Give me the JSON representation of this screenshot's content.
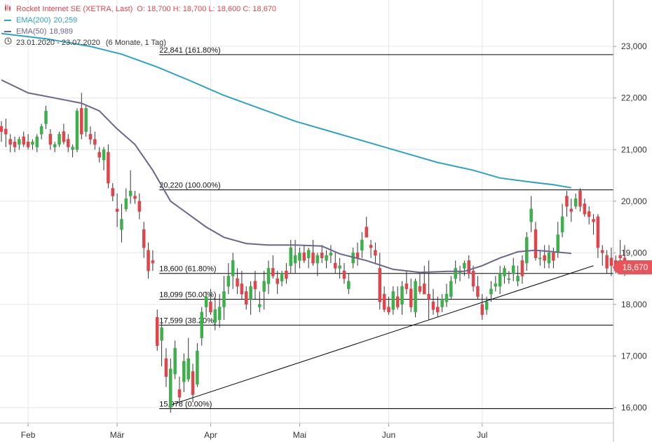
{
  "legend": {
    "title": "Rocket Internet SE (XETRA, Last)",
    "ohlc": "O: 18,700   H: 18,700   L: 18,600   C: 18,670",
    "ema200_label": "EMA(200)",
    "ema200_value": "20,259",
    "ema50_label": "EMA(50)",
    "ema50_value": "18,989",
    "range_label": "23.01.2020 - 23.07.2020",
    "period_label": "(6 Monate, 1 Tag)"
  },
  "last_price_label": "18,670",
  "colors": {
    "up": "#3cb04a",
    "down": "#e0454b",
    "ema200": "#2aa3c4",
    "ema50": "#6e6589",
    "grid": "#e6e6e6",
    "fib_line": "#000000",
    "price_tag": "#e8545a"
  },
  "chart_data": {
    "type": "candlestick",
    "title": "Rocket Internet SE (XETRA, Last)",
    "y_axis": {
      "min": 15700,
      "max": 23900,
      "ticks": [
        16000,
        17000,
        18000,
        19000,
        20000,
        21000,
        22000,
        23000
      ],
      "tick_labels": [
        "16,000",
        "17,000",
        "18,000",
        "19,000",
        "20,000",
        "21,000",
        "22,000",
        "23,000"
      ]
    },
    "x_axis": {
      "month_labels": [
        {
          "label": "Feb",
          "index": 6
        },
        {
          "label": "Mär",
          "index": 26
        },
        {
          "label": "Apr",
          "index": 47
        },
        {
          "label": "Mai",
          "index": 67
        },
        {
          "label": "Jun",
          "index": 87
        },
        {
          "label": "Jul",
          "index": 108
        }
      ]
    },
    "candles": [
      {
        "o": 21450,
        "h": 21550,
        "l": 21150,
        "c": 21350
      },
      {
        "o": 21400,
        "h": 21600,
        "l": 21050,
        "c": 21300
      },
      {
        "o": 21200,
        "h": 21300,
        "l": 20950,
        "c": 21100
      },
      {
        "o": 21150,
        "h": 21250,
        "l": 20950,
        "c": 21050
      },
      {
        "o": 21100,
        "h": 21250,
        "l": 21000,
        "c": 21200
      },
      {
        "o": 21250,
        "h": 21350,
        "l": 21050,
        "c": 21100
      },
      {
        "o": 21150,
        "h": 21300,
        "l": 21000,
        "c": 21050
      },
      {
        "o": 21100,
        "h": 21200,
        "l": 21000,
        "c": 21150
      },
      {
        "o": 21050,
        "h": 21300,
        "l": 20950,
        "c": 21250
      },
      {
        "o": 21300,
        "h": 21500,
        "l": 21200,
        "c": 21450
      },
      {
        "o": 21500,
        "h": 21850,
        "l": 21400,
        "c": 21750
      },
      {
        "o": 21300,
        "h": 21400,
        "l": 21000,
        "c": 21100
      },
      {
        "o": 21050,
        "h": 21150,
        "l": 20950,
        "c": 21100
      },
      {
        "o": 21100,
        "h": 21350,
        "l": 21050,
        "c": 21300
      },
      {
        "o": 21350,
        "h": 21500,
        "l": 21100,
        "c": 21150
      },
      {
        "o": 21200,
        "h": 21300,
        "l": 20950,
        "c": 21050
      },
      {
        "o": 21000,
        "h": 21100,
        "l": 20850,
        "c": 21050
      },
      {
        "o": 21000,
        "h": 21800,
        "l": 20950,
        "c": 21750
      },
      {
        "o": 21800,
        "h": 22100,
        "l": 21200,
        "c": 21300
      },
      {
        "o": 21350,
        "h": 21850,
        "l": 21250,
        "c": 21800
      },
      {
        "o": 21300,
        "h": 21450,
        "l": 21100,
        "c": 21200
      },
      {
        "o": 21200,
        "h": 21350,
        "l": 21000,
        "c": 21100
      },
      {
        "o": 20950,
        "h": 21050,
        "l": 20750,
        "c": 20850
      },
      {
        "o": 20800,
        "h": 21050,
        "l": 20600,
        "c": 21000
      },
      {
        "o": 20950,
        "h": 21100,
        "l": 20250,
        "c": 20350
      },
      {
        "o": 20250,
        "h": 20350,
        "l": 20000,
        "c": 20100
      },
      {
        "o": 19850,
        "h": 20150,
        "l": 19500,
        "c": 19800
      },
      {
        "o": 19450,
        "h": 19950,
        "l": 19200,
        "c": 19650
      },
      {
        "o": 19850,
        "h": 20250,
        "l": 19800,
        "c": 20050
      },
      {
        "o": 20100,
        "h": 20600,
        "l": 19950,
        "c": 20200
      },
      {
        "o": 20100,
        "h": 20200,
        "l": 19950,
        "c": 20050
      },
      {
        "o": 20000,
        "h": 20150,
        "l": 19650,
        "c": 19800
      },
      {
        "o": 19450,
        "h": 19600,
        "l": 18900,
        "c": 19100
      },
      {
        "o": 19050,
        "h": 19200,
        "l": 18500,
        "c": 18650
      },
      {
        "o": 18850,
        "h": 19050,
        "l": 18650,
        "c": 18800
      },
      {
        "o": 17750,
        "h": 17900,
        "l": 17100,
        "c": 17200
      },
      {
        "o": 17300,
        "h": 17650,
        "l": 16800,
        "c": 17550
      },
      {
        "o": 16950,
        "h": 17150,
        "l": 16400,
        "c": 16600
      },
      {
        "o": 16000,
        "h": 16950,
        "l": 15900,
        "c": 16750
      },
      {
        "o": 16650,
        "h": 17300,
        "l": 16550,
        "c": 17150
      },
      {
        "o": 16350,
        "h": 16600,
        "l": 16050,
        "c": 16200
      },
      {
        "o": 16500,
        "h": 17050,
        "l": 16300,
        "c": 16900
      },
      {
        "o": 16550,
        "h": 17350,
        "l": 16500,
        "c": 16950
      },
      {
        "o": 16700,
        "h": 16850,
        "l": 16100,
        "c": 16250
      },
      {
        "o": 16450,
        "h": 17250,
        "l": 16400,
        "c": 17100
      },
      {
        "o": 17350,
        "h": 17950,
        "l": 17200,
        "c": 17850
      },
      {
        "o": 17950,
        "h": 18250,
        "l": 17750,
        "c": 18150
      },
      {
        "o": 18050,
        "h": 18300,
        "l": 17800,
        "c": 17850
      },
      {
        "o": 17650,
        "h": 18150,
        "l": 17500,
        "c": 17900
      },
      {
        "o": 17700,
        "h": 18200,
        "l": 17550,
        "c": 17950
      },
      {
        "o": 17950,
        "h": 18550,
        "l": 17700,
        "c": 18250
      },
      {
        "o": 18350,
        "h": 18800,
        "l": 18200,
        "c": 18550
      },
      {
        "o": 18550,
        "h": 19000,
        "l": 18300,
        "c": 18850
      },
      {
        "o": 18500,
        "h": 18700,
        "l": 18200,
        "c": 18350
      },
      {
        "o": 18400,
        "h": 18650,
        "l": 18100,
        "c": 18200
      },
      {
        "o": 18250,
        "h": 18350,
        "l": 17900,
        "c": 18000
      },
      {
        "o": 18100,
        "h": 18450,
        "l": 17800,
        "c": 18350
      },
      {
        "o": 18450,
        "h": 18650,
        "l": 18100,
        "c": 18300
      },
      {
        "o": 17950,
        "h": 18250,
        "l": 17850,
        "c": 18000
      },
      {
        "o": 18250,
        "h": 18650,
        "l": 17900,
        "c": 18450
      },
      {
        "o": 18400,
        "h": 18850,
        "l": 18200,
        "c": 18700
      },
      {
        "o": 18700,
        "h": 18950,
        "l": 18500,
        "c": 18550
      },
      {
        "o": 18500,
        "h": 18650,
        "l": 18200,
        "c": 18400
      },
      {
        "o": 18450,
        "h": 18650,
        "l": 18350,
        "c": 18600
      },
      {
        "o": 18650,
        "h": 18800,
        "l": 18400,
        "c": 18500
      },
      {
        "o": 18750,
        "h": 19250,
        "l": 18600,
        "c": 19100
      },
      {
        "o": 18800,
        "h": 19250,
        "l": 18600,
        "c": 18950
      },
      {
        "o": 18850,
        "h": 19100,
        "l": 18700,
        "c": 19000
      },
      {
        "o": 19000,
        "h": 19150,
        "l": 18800,
        "c": 18850
      },
      {
        "o": 18900,
        "h": 19100,
        "l": 18700,
        "c": 19050
      },
      {
        "o": 19000,
        "h": 19250,
        "l": 18750,
        "c": 18800
      },
      {
        "o": 18800,
        "h": 19000,
        "l": 18550,
        "c": 18950
      },
      {
        "o": 19000,
        "h": 19150,
        "l": 18800,
        "c": 18900
      },
      {
        "o": 18850,
        "h": 19050,
        "l": 18700,
        "c": 18950
      },
      {
        "o": 18950,
        "h": 19150,
        "l": 18800,
        "c": 19000
      },
      {
        "o": 18800,
        "h": 19000,
        "l": 18600,
        "c": 18700
      },
      {
        "o": 18700,
        "h": 18900,
        "l": 18500,
        "c": 18750
      },
      {
        "o": 18650,
        "h": 18800,
        "l": 18400,
        "c": 18500
      },
      {
        "o": 18300,
        "h": 18600,
        "l": 18200,
        "c": 18450
      },
      {
        "o": 18800,
        "h": 19100,
        "l": 18700,
        "c": 19000
      },
      {
        "o": 19000,
        "h": 19200,
        "l": 18750,
        "c": 18900
      },
      {
        "o": 19050,
        "h": 19400,
        "l": 18900,
        "c": 19250
      },
      {
        "o": 19500,
        "h": 19700,
        "l": 19300,
        "c": 19300
      },
      {
        "o": 19150,
        "h": 19250,
        "l": 18900,
        "c": 19100
      },
      {
        "o": 19050,
        "h": 19200,
        "l": 18800,
        "c": 18950
      },
      {
        "o": 18700,
        "h": 19000,
        "l": 17900,
        "c": 18050
      },
      {
        "o": 18200,
        "h": 18350,
        "l": 17850,
        "c": 17900
      },
      {
        "o": 17950,
        "h": 18150,
        "l": 17800,
        "c": 17850
      },
      {
        "o": 17900,
        "h": 18350,
        "l": 17800,
        "c": 18250
      },
      {
        "o": 18150,
        "h": 18350,
        "l": 17900,
        "c": 17950
      },
      {
        "o": 18000,
        "h": 18450,
        "l": 17800,
        "c": 18350
      },
      {
        "o": 18400,
        "h": 18650,
        "l": 18200,
        "c": 18300
      },
      {
        "o": 18300,
        "h": 18500,
        "l": 17850,
        "c": 17950
      },
      {
        "o": 17850,
        "h": 18500,
        "l": 17750,
        "c": 18450
      },
      {
        "o": 18350,
        "h": 18600,
        "l": 18200,
        "c": 18250
      },
      {
        "o": 18400,
        "h": 18750,
        "l": 18250,
        "c": 18200
      },
      {
        "o": 18200,
        "h": 18850,
        "l": 17700,
        "c": 18100
      },
      {
        "o": 18050,
        "h": 18300,
        "l": 17800,
        "c": 17900
      },
      {
        "o": 17950,
        "h": 18150,
        "l": 17750,
        "c": 17850
      },
      {
        "o": 17950,
        "h": 18200,
        "l": 17850,
        "c": 18100
      },
      {
        "o": 18050,
        "h": 18400,
        "l": 17950,
        "c": 18200
      },
      {
        "o": 18150,
        "h": 18550,
        "l": 18100,
        "c": 18450
      },
      {
        "o": 18500,
        "h": 18850,
        "l": 18400,
        "c": 18700
      },
      {
        "o": 18600,
        "h": 18750,
        "l": 18450,
        "c": 18650
      },
      {
        "o": 18700,
        "h": 18850,
        "l": 18550,
        "c": 18800
      },
      {
        "o": 18850,
        "h": 18950,
        "l": 18500,
        "c": 18600
      },
      {
        "o": 18650,
        "h": 18750,
        "l": 18250,
        "c": 18350
      },
      {
        "o": 18350,
        "h": 18550,
        "l": 18100,
        "c": 18150
      },
      {
        "o": 18000,
        "h": 18200,
        "l": 17700,
        "c": 17800
      },
      {
        "o": 17900,
        "h": 18150,
        "l": 17800,
        "c": 18050
      },
      {
        "o": 18200,
        "h": 18450,
        "l": 18050,
        "c": 18300
      },
      {
        "o": 18350,
        "h": 18550,
        "l": 18250,
        "c": 18400
      },
      {
        "o": 18350,
        "h": 18750,
        "l": 18200,
        "c": 18600
      },
      {
        "o": 18550,
        "h": 18750,
        "l": 18400,
        "c": 18700
      },
      {
        "o": 18500,
        "h": 18650,
        "l": 18400,
        "c": 18500
      },
      {
        "o": 18600,
        "h": 18900,
        "l": 18450,
        "c": 18750
      },
      {
        "o": 18450,
        "h": 18750,
        "l": 18350,
        "c": 18550
      },
      {
        "o": 18850,
        "h": 18950,
        "l": 18400,
        "c": 18550
      },
      {
        "o": 18800,
        "h": 19400,
        "l": 18650,
        "c": 19300
      },
      {
        "o": 19600,
        "h": 20100,
        "l": 19400,
        "c": 19850
      },
      {
        "o": 19450,
        "h": 19600,
        "l": 18850,
        "c": 18900
      },
      {
        "o": 18900,
        "h": 19050,
        "l": 18750,
        "c": 18900
      },
      {
        "o": 18950,
        "h": 19150,
        "l": 18700,
        "c": 18850
      },
      {
        "o": 18800,
        "h": 19150,
        "l": 18700,
        "c": 19000
      },
      {
        "o": 19000,
        "h": 19100,
        "l": 18700,
        "c": 18850
      },
      {
        "o": 19000,
        "h": 19600,
        "l": 18900,
        "c": 19350
      },
      {
        "o": 19400,
        "h": 19950,
        "l": 19300,
        "c": 19700
      },
      {
        "o": 20100,
        "h": 20200,
        "l": 19700,
        "c": 19900
      },
      {
        "o": 19850,
        "h": 20050,
        "l": 19600,
        "c": 19800
      },
      {
        "o": 19900,
        "h": 20150,
        "l": 19850,
        "c": 20050
      },
      {
        "o": 20200,
        "h": 20250,
        "l": 19800,
        "c": 19900
      },
      {
        "o": 19950,
        "h": 20050,
        "l": 19700,
        "c": 19750
      },
      {
        "o": 19800,
        "h": 19900,
        "l": 19550,
        "c": 19700
      },
      {
        "o": 19650,
        "h": 19750,
        "l": 19350,
        "c": 19600
      },
      {
        "o": 19700,
        "h": 19750,
        "l": 18900,
        "c": 19100
      },
      {
        "o": 19050,
        "h": 19150,
        "l": 18750,
        "c": 19000
      },
      {
        "o": 18950,
        "h": 19050,
        "l": 18600,
        "c": 18700
      },
      {
        "o": 18900,
        "h": 19100,
        "l": 18550,
        "c": 18750
      },
      {
        "o": 18850,
        "h": 18950,
        "l": 18600,
        "c": 18650
      },
      {
        "o": 18950,
        "h": 19250,
        "l": 18850,
        "c": 18900
      },
      {
        "o": 18900,
        "h": 19150,
        "l": 18550,
        "c": 18600
      },
      {
        "o": 18700,
        "h": 18700,
        "l": 18600,
        "c": 18670
      }
    ],
    "ema200": [
      [
        0,
        23250
      ],
      [
        10,
        23150
      ],
      [
        20,
        23000
      ],
      [
        27,
        22850
      ],
      [
        35,
        22600
      ],
      [
        42,
        22350
      ],
      [
        50,
        22050
      ],
      [
        58,
        21800
      ],
      [
        66,
        21550
      ],
      [
        74,
        21350
      ],
      [
        82,
        21150
      ],
      [
        90,
        20950
      ],
      [
        98,
        20750
      ],
      [
        106,
        20600
      ],
      [
        112,
        20450
      ],
      [
        118,
        20380
      ],
      [
        124,
        20320
      ],
      [
        128,
        20259
      ]
    ],
    "ema50": [
      [
        0,
        22350
      ],
      [
        6,
        22100
      ],
      [
        12,
        22000
      ],
      [
        18,
        21900
      ],
      [
        22,
        21750
      ],
      [
        26,
        21400
      ],
      [
        30,
        21100
      ],
      [
        34,
        20600
      ],
      [
        38,
        20000
      ],
      [
        42,
        19750
      ],
      [
        46,
        19500
      ],
      [
        50,
        19300
      ],
      [
        55,
        19180
      ],
      [
        60,
        19150
      ],
      [
        66,
        19150
      ],
      [
        72,
        19130
      ],
      [
        76,
        18980
      ],
      [
        82,
        18850
      ],
      [
        88,
        18680
      ],
      [
        94,
        18620
      ],
      [
        100,
        18640
      ],
      [
        104,
        18640
      ],
      [
        108,
        18750
      ],
      [
        112,
        18900
      ],
      [
        116,
        19020
      ],
      [
        120,
        19050
      ],
      [
        124,
        19020
      ],
      [
        128,
        18989
      ]
    ],
    "fib_levels": [
      {
        "value": 22841,
        "label": "22,841 (161.80%)"
      },
      {
        "value": 20220,
        "label": "20,220 (100.00%)"
      },
      {
        "value": 18600,
        "label": "18,600 (61.80%)"
      },
      {
        "value": 18099,
        "label": "18,099 (50.00%)"
      },
      {
        "value": 17599,
        "label": "17,599 (38.20%)"
      },
      {
        "value": 15978,
        "label": "15,978 (0.00%)"
      }
    ],
    "fib_start_index": 35,
    "trendline": [
      [
        38,
        16050
      ],
      [
        133,
        18750
      ]
    ]
  }
}
